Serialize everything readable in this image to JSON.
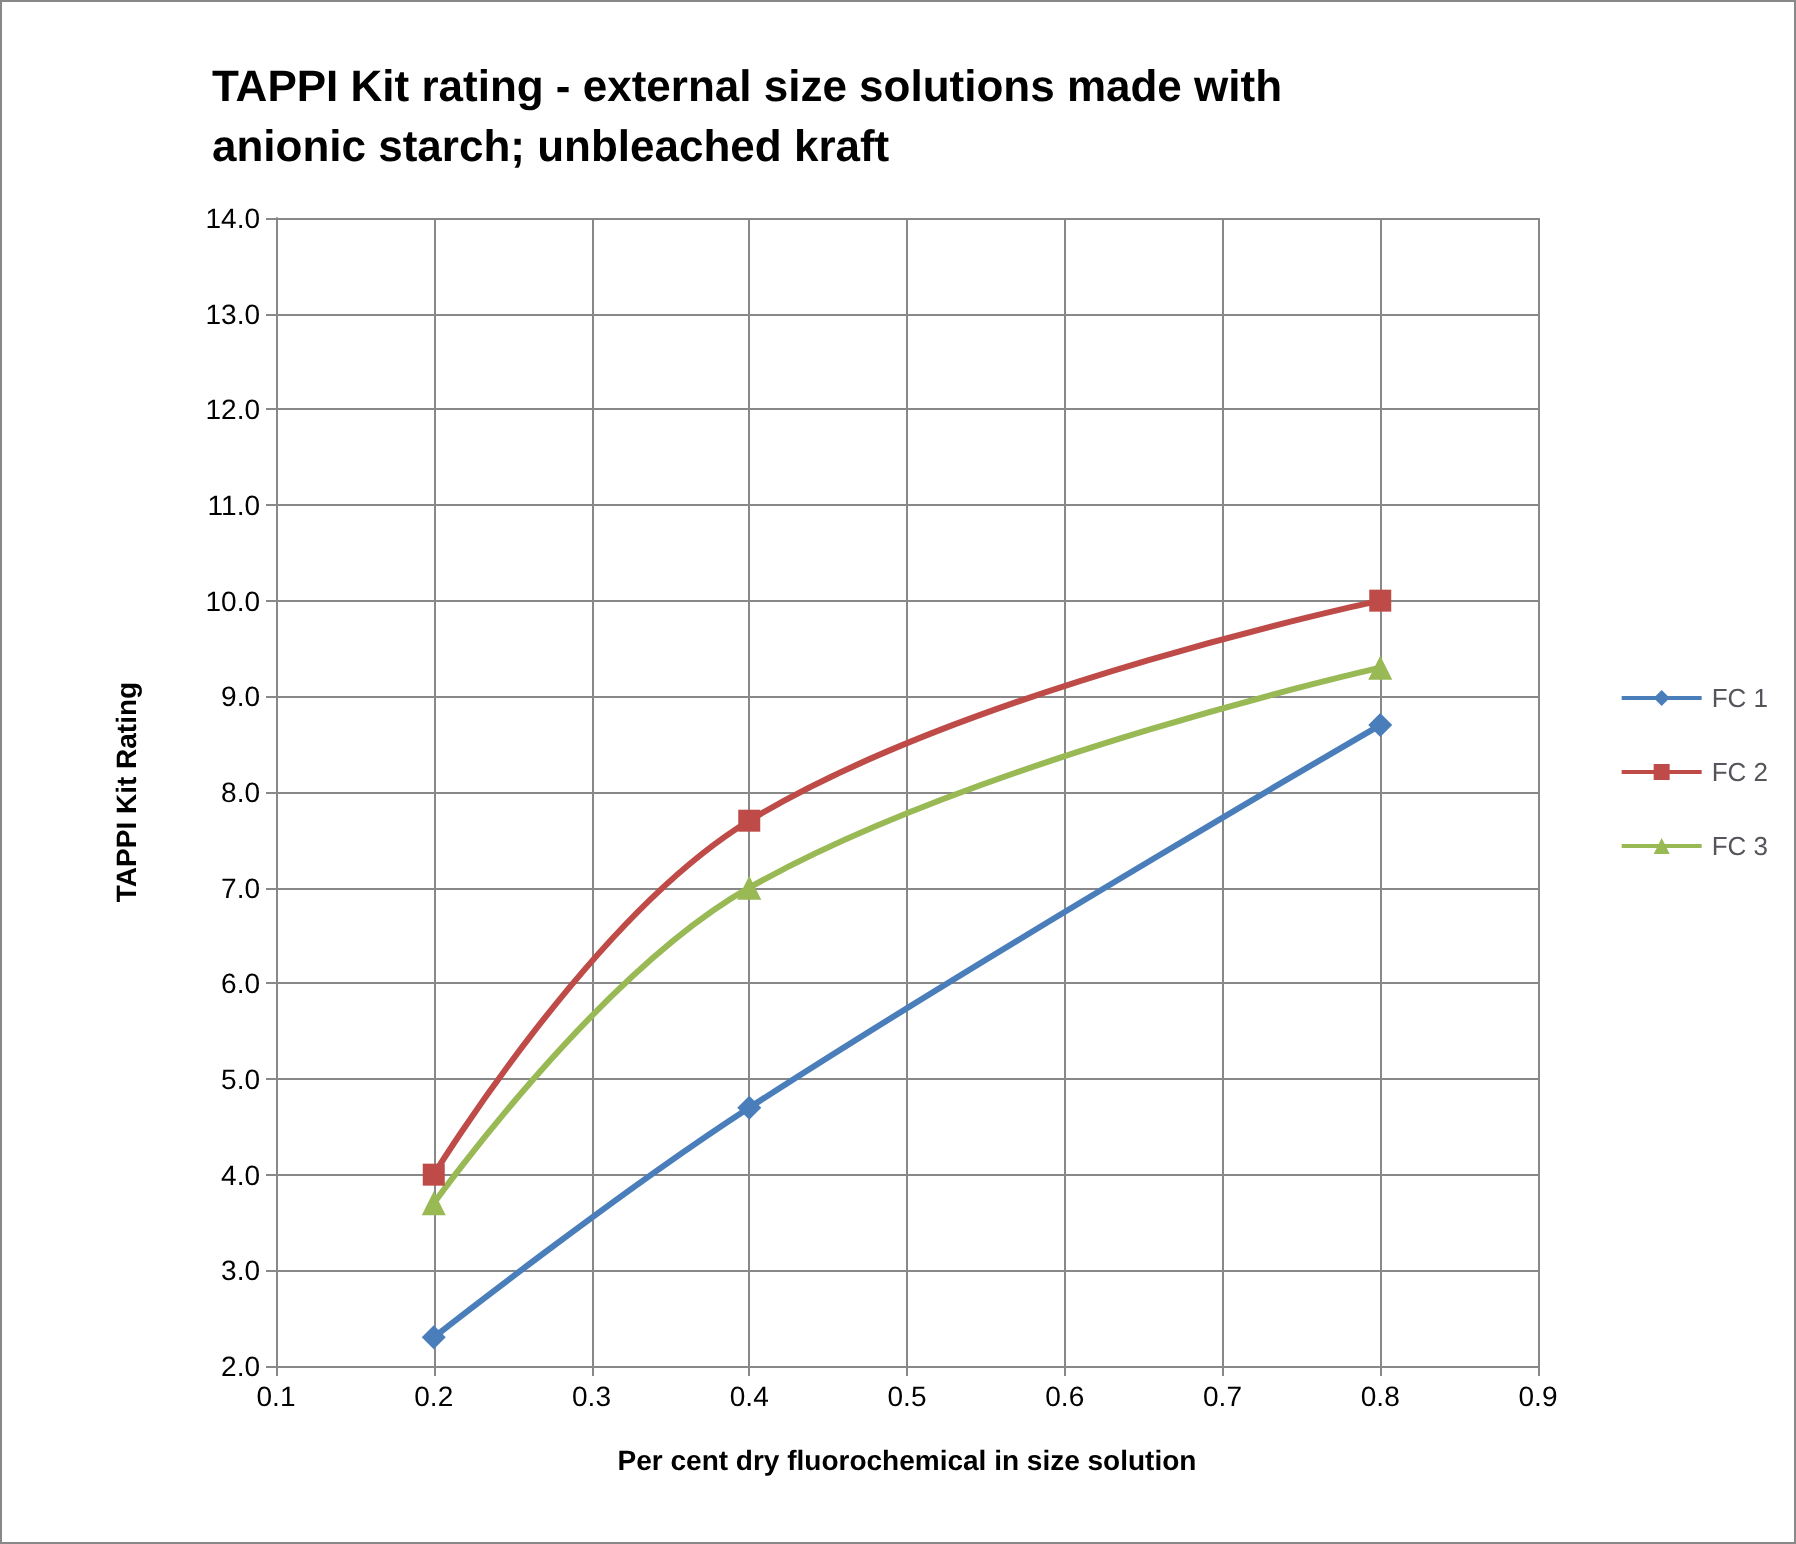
{
  "chart_data": {
    "type": "line",
    "title": "TAPPI Kit rating - external size solutions made with\nanionic starch; unbleached kraft",
    "xlabel": "Per cent dry fluorochemical in size solution",
    "ylabel": "TAPPI Kit Rating",
    "x": [
      0.2,
      0.4,
      0.8
    ],
    "series": [
      {
        "name": "FC 1",
        "color": "#4a7ebb",
        "marker": "diamond",
        "values": [
          2.3,
          4.7,
          8.7
        ]
      },
      {
        "name": "FC 2",
        "color": "#be4b48",
        "marker": "square",
        "values": [
          4.0,
          7.7,
          10.0
        ]
      },
      {
        "name": "FC 3",
        "color": "#98b954",
        "marker": "triangle",
        "values": [
          3.7,
          7.0,
          9.3
        ]
      }
    ],
    "xlim": [
      0.1,
      0.9
    ],
    "xticks": [
      0.1,
      0.2,
      0.3,
      0.4,
      0.5,
      0.6,
      0.7,
      0.8,
      0.9
    ],
    "ylim": [
      2,
      14
    ],
    "yticks": [
      {
        "value": 2,
        "label": "2.0"
      },
      {
        "value": 3,
        "label": "3.0"
      },
      {
        "value": 4,
        "label": "4.0"
      },
      {
        "value": 5,
        "label": "5.0"
      },
      {
        "value": 6,
        "label": "6.0"
      },
      {
        "value": 7,
        "label": "7.0"
      },
      {
        "value": 8,
        "label": "8.0"
      },
      {
        "value": 9,
        "label": "9.0"
      },
      {
        "value": 10,
        "label": "10.0"
      },
      {
        "value": 11,
        "label": "11.0"
      },
      {
        "value": 12,
        "label": "12.0"
      },
      {
        "value": 13,
        "label": "13.0"
      },
      {
        "value": 14,
        "label": "14.0"
      }
    ],
    "grid": true,
    "legend": "right",
    "line_style": "solid"
  }
}
